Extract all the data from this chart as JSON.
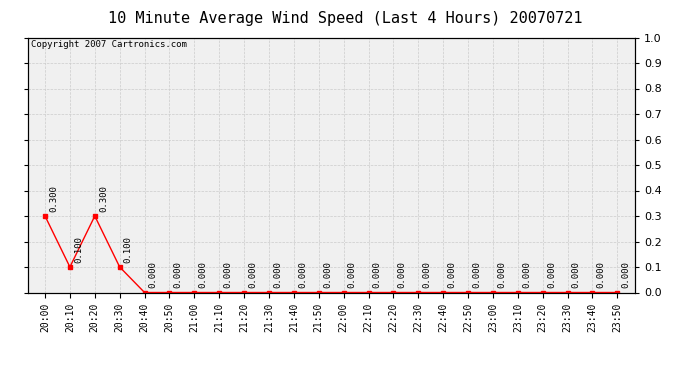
{
  "title": "10 Minute Average Wind Speed (Last 4 Hours) 20070721",
  "copyright_text": "Copyright 2007 Cartronics.com",
  "x_labels": [
    "20:00",
    "20:10",
    "20:20",
    "20:30",
    "20:40",
    "20:50",
    "21:00",
    "21:10",
    "21:20",
    "21:30",
    "21:40",
    "21:50",
    "22:00",
    "22:10",
    "22:20",
    "22:30",
    "22:40",
    "22:50",
    "23:00",
    "23:10",
    "23:20",
    "23:30",
    "23:40",
    "23:50"
  ],
  "y_values": [
    0.3,
    0.1,
    0.3,
    0.1,
    0.0,
    0.0,
    0.0,
    0.0,
    0.0,
    0.0,
    0.0,
    0.0,
    0.0,
    0.0,
    0.0,
    0.0,
    0.0,
    0.0,
    0.0,
    0.0,
    0.0,
    0.0,
    0.0,
    0.0
  ],
  "line_color": "#ff0000",
  "marker": "s",
  "marker_size": 2.5,
  "ylim": [
    0.0,
    1.0
  ],
  "yticks": [
    0.0,
    0.1,
    0.2,
    0.3,
    0.4,
    0.5,
    0.6,
    0.7,
    0.8,
    0.9,
    1.0
  ],
  "grid_color": "#cccccc",
  "background_color": "#f0f0f0",
  "title_fontsize": 11,
  "annotation_fontsize": 6.5,
  "annotation_rotation": 90,
  "xlabel_fontsize": 7,
  "ylabel_fontsize": 8,
  "copyright_fontsize": 6.5
}
